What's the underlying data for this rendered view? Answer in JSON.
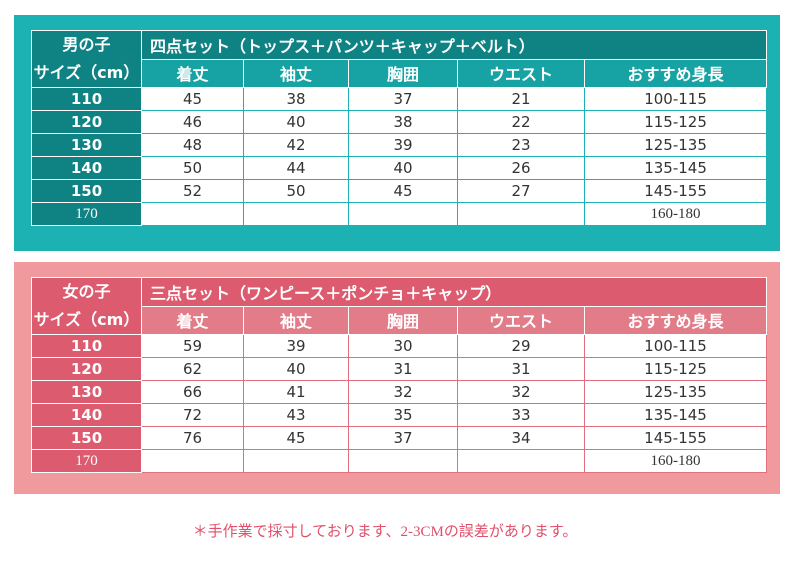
{
  "boys": {
    "corner_line1": "男の子",
    "corner_line2": "サイズ（cm）",
    "title": "四点セット（トップス＋パンツ＋キャップ＋ベルト）",
    "columns": [
      "着丈",
      "袖丈",
      "胸囲",
      "ウエスト",
      "おすすめ身長"
    ],
    "rows": [
      {
        "size": "110",
        "values": [
          "45",
          "38",
          "37",
          "21",
          "100-115"
        ]
      },
      {
        "size": "120",
        "values": [
          "46",
          "40",
          "38",
          "22",
          "115-125"
        ]
      },
      {
        "size": "130",
        "values": [
          "48",
          "42",
          "39",
          "23",
          "125-135"
        ]
      },
      {
        "size": "140",
        "values": [
          "50",
          "44",
          "40",
          "26",
          "135-145"
        ]
      },
      {
        "size": "150",
        "values": [
          "52",
          "50",
          "45",
          "27",
          "145-155"
        ]
      },
      {
        "size": "170",
        "values": [
          "",
          "",
          "",
          "",
          "160-180"
        ]
      }
    ],
    "accent_color": "#1cb2b4"
  },
  "girls": {
    "corner_line1": "女の子",
    "corner_line2": "サイズ（cm）",
    "title": "三点セット（ワンピース＋ポンチョ＋キャップ）",
    "columns": [
      "着丈",
      "袖丈",
      "胸囲",
      "ウエスト",
      "おすすめ身長"
    ],
    "rows": [
      {
        "size": "110",
        "values": [
          "59",
          "39",
          "30",
          "29",
          "100-115"
        ]
      },
      {
        "size": "120",
        "values": [
          "62",
          "40",
          "31",
          "31",
          "115-125"
        ]
      },
      {
        "size": "130",
        "values": [
          "66",
          "41",
          "32",
          "32",
          "125-135"
        ]
      },
      {
        "size": "140",
        "values": [
          "72",
          "43",
          "35",
          "33",
          "135-145"
        ]
      },
      {
        "size": "150",
        "values": [
          "76",
          "45",
          "37",
          "34",
          "145-155"
        ]
      },
      {
        "size": "170",
        "values": [
          "",
          "",
          "",
          "",
          "160-180"
        ]
      }
    ],
    "accent_color": "#f09a9d"
  },
  "note": "＊手作業で採寸しております、2-3CMの誤差があります。"
}
